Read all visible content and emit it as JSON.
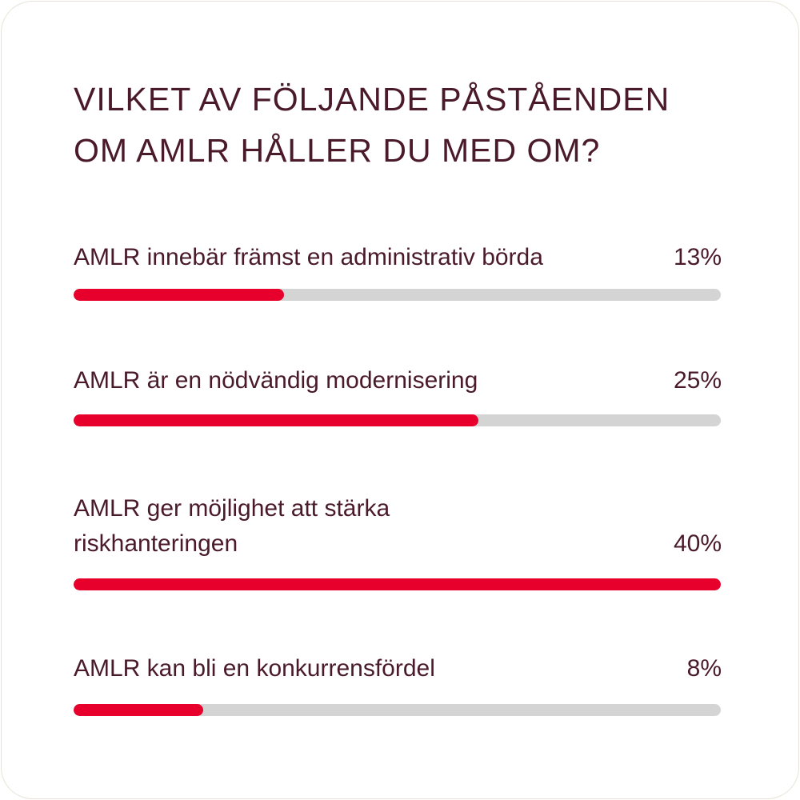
{
  "chart_data": {
    "type": "bar",
    "title": "VILKET AV FÖLJANDE PÅSTÅENDEN\nOM AMLR HÅLLER DU MED OM?",
    "categories": [
      "AMLR innebär främst en administrativ börda",
      "AMLR är en nödvändig modernisering",
      "AMLR ger möjlighet att stärka\nriskhanteringen",
      "AMLR kan bli en konkurrensfördel"
    ],
    "values": [
      13,
      25,
      40,
      8
    ],
    "value_labels": [
      "13%",
      "25%",
      "40%",
      "8%"
    ],
    "color": "#e8002d"
  }
}
